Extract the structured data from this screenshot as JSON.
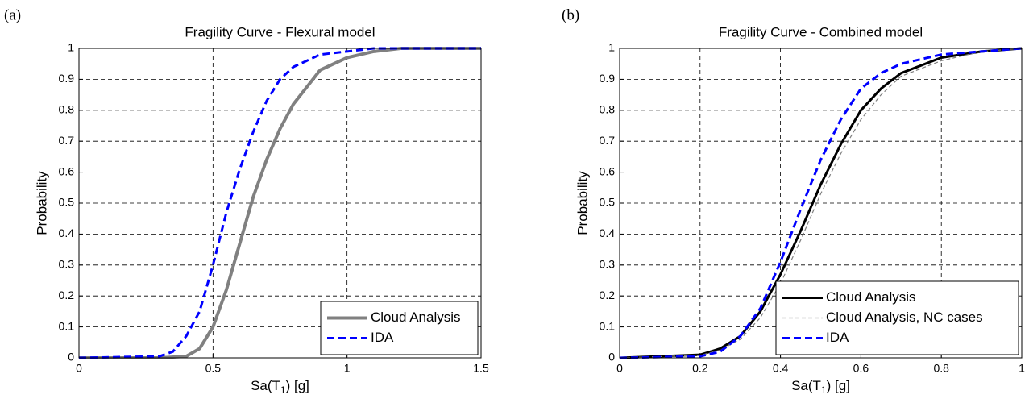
{
  "chart_data": [
    {
      "type": "line",
      "panel": "(a)",
      "title": "Fragility Curve - Flexural model",
      "xlabel": [
        "Sa(T",
        "1",
        ") [g]"
      ],
      "ylabel": "Probability",
      "xlim": [
        0,
        1.5
      ],
      "xticks": [
        0,
        0.5,
        1,
        1.5
      ],
      "ylim": [
        0,
        1
      ],
      "yticks": [
        0,
        0.1,
        0.2,
        0.3,
        0.4,
        0.5,
        0.6,
        0.7,
        0.8,
        0.9,
        1
      ],
      "grid": true,
      "legend": "lower right",
      "series": [
        {
          "name": "Cloud Analysis",
          "color": "#808080",
          "style": "solid",
          "linewidth": 4,
          "x": [
            0,
            0.3,
            0.4,
            0.45,
            0.5,
            0.55,
            0.6,
            0.65,
            0.7,
            0.75,
            0.8,
            0.9,
            1.0,
            1.1,
            1.2,
            1.5
          ],
          "values": [
            0,
            0,
            0.005,
            0.03,
            0.1,
            0.22,
            0.37,
            0.52,
            0.64,
            0.74,
            0.82,
            0.93,
            0.97,
            0.99,
            1,
            1
          ]
        },
        {
          "name": "IDA",
          "color": "#0000ff",
          "style": "dashed",
          "linewidth": 3,
          "x": [
            0,
            0.3,
            0.35,
            0.4,
            0.45,
            0.5,
            0.55,
            0.6,
            0.65,
            0.7,
            0.75,
            0.8,
            0.9,
            1.0,
            1.1,
            1.5
          ],
          "values": [
            0,
            0.005,
            0.02,
            0.07,
            0.15,
            0.3,
            0.47,
            0.61,
            0.73,
            0.83,
            0.9,
            0.94,
            0.98,
            0.99,
            1,
            1
          ]
        }
      ]
    },
    {
      "type": "line",
      "panel": "(b)",
      "title": "Fragility Curve - Combined model",
      "xlabel": [
        "Sa(T",
        "1",
        ") [g]"
      ],
      "ylabel": "Probability",
      "xlim": [
        0,
        1
      ],
      "xticks": [
        0,
        0.2,
        0.4,
        0.6,
        0.8,
        1
      ],
      "ylim": [
        0,
        1
      ],
      "yticks": [
        0,
        0.1,
        0.2,
        0.3,
        0.4,
        0.5,
        0.6,
        0.7,
        0.8,
        0.9,
        1
      ],
      "grid": true,
      "legend": "lower right",
      "series": [
        {
          "name": "Cloud Analysis",
          "color": "#000000",
          "style": "solid",
          "linewidth": 3,
          "x": [
            0,
            0.2,
            0.25,
            0.3,
            0.35,
            0.4,
            0.45,
            0.5,
            0.55,
            0.6,
            0.65,
            0.7,
            0.8,
            0.9,
            1.0
          ],
          "values": [
            0,
            0.01,
            0.03,
            0.07,
            0.15,
            0.27,
            0.41,
            0.56,
            0.69,
            0.8,
            0.87,
            0.92,
            0.97,
            0.99,
            1
          ]
        },
        {
          "name": "Cloud Analysis, NC cases",
          "color": "#808080",
          "style": "dashed",
          "linewidth": 1.2,
          "x": [
            0,
            0.2,
            0.25,
            0.3,
            0.35,
            0.4,
            0.45,
            0.5,
            0.55,
            0.6,
            0.65,
            0.7,
            0.8,
            0.9,
            1.0
          ],
          "values": [
            0,
            0.008,
            0.025,
            0.06,
            0.13,
            0.24,
            0.38,
            0.53,
            0.66,
            0.77,
            0.85,
            0.91,
            0.96,
            0.99,
            1
          ]
        },
        {
          "name": "IDA",
          "color": "#0000ff",
          "style": "dashed",
          "linewidth": 3,
          "x": [
            0,
            0.2,
            0.25,
            0.3,
            0.35,
            0.4,
            0.45,
            0.5,
            0.55,
            0.6,
            0.65,
            0.7,
            0.8,
            0.9,
            1.0
          ],
          "values": [
            0,
            0.005,
            0.02,
            0.07,
            0.16,
            0.31,
            0.48,
            0.64,
            0.77,
            0.87,
            0.92,
            0.95,
            0.98,
            0.99,
            1
          ]
        }
      ]
    }
  ]
}
